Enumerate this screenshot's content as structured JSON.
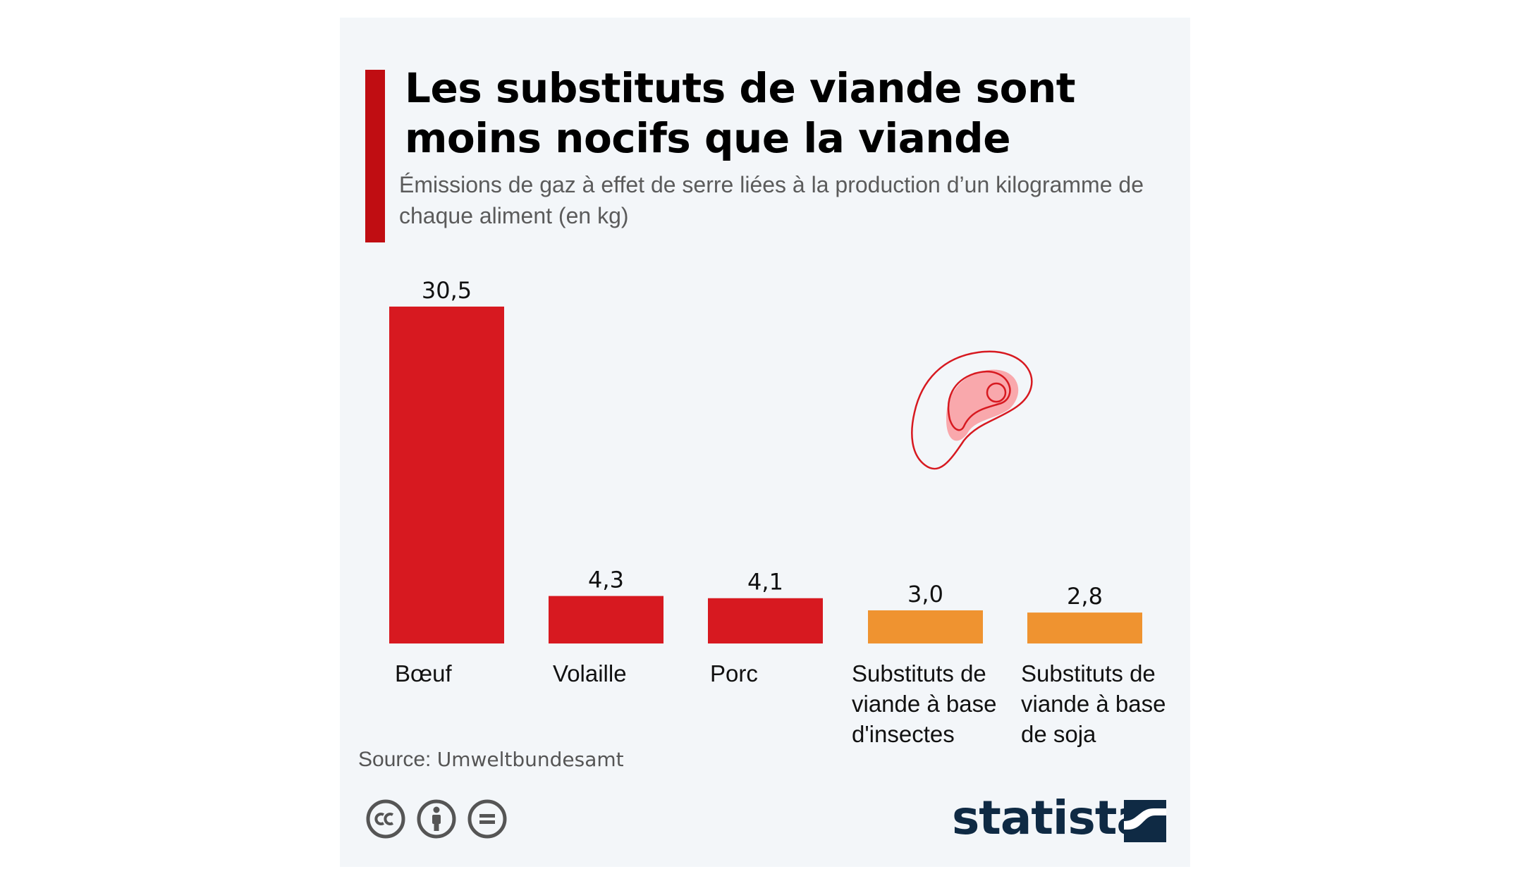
{
  "title": "Les substituts de viande sont moins nocifs que la viande",
  "subtitle": "Émissions de gaz à effet de serre liées à la production d’un kilogramme de chaque aliment (en kg)",
  "chart_data": {
    "type": "bar",
    "title": "Les substituts de viande sont moins nocifs que la viande",
    "subtitle": "Émissions de gaz à effet de serre liées à la production d’un kilogramme de chaque aliment (en kg)",
    "categories": [
      "Bœuf",
      "Volaille",
      "Porc",
      "Substituts de viande à base d'insectes",
      "Substituts de viande à base de soja"
    ],
    "values": [
      30.5,
      4.3,
      4.1,
      3.0,
      2.8
    ],
    "value_labels": [
      "30,5",
      "4,3",
      "4,1",
      "3,0",
      "2,8"
    ],
    "colors": [
      "#d71920",
      "#d71920",
      "#d71920",
      "#ef9330",
      "#ef9330"
    ],
    "xlabel": "",
    "ylabel": "",
    "ylim": [
      0,
      30.5
    ],
    "grid": false,
    "legend": "none"
  },
  "source": {
    "label": "Source:",
    "value": "Umweltbundesamt"
  },
  "brand": "statista",
  "icons": [
    "cc-icon",
    "by-icon",
    "nd-icon",
    "meat-icon",
    "statista-logo-icon"
  ],
  "accent_color": "#c00d12"
}
